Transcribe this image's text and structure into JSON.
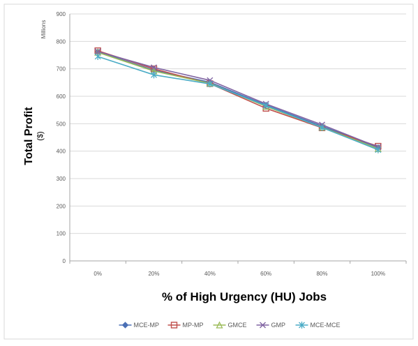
{
  "chart_data": {
    "type": "line",
    "x": [
      "0%",
      "20%",
      "40%",
      "60%",
      "80%",
      "100%"
    ],
    "series": [
      {
        "name": "MCE-MP",
        "values": [
          762,
          695,
          651,
          568,
          491,
          413
        ],
        "color": "#4a6fb5",
        "marker": "diamond"
      },
      {
        "name": "MP-MP",
        "values": [
          766,
          700,
          646,
          556,
          485,
          418
        ],
        "color": "#c0504d",
        "marker": "square"
      },
      {
        "name": "GMCE",
        "values": [
          760,
          692,
          647,
          563,
          487,
          409
        ],
        "color": "#9bbb59",
        "marker": "triangle"
      },
      {
        "name": "GMP",
        "values": [
          763,
          705,
          658,
          572,
          496,
          415
        ],
        "color": "#8064a2",
        "marker": "x"
      },
      {
        "name": "MCE-MCE",
        "values": [
          745,
          678,
          645,
          566,
          486,
          405
        ],
        "color": "#4bacc6",
        "marker": "star"
      }
    ],
    "xlabel": "% of High Urgency (HU) Jobs",
    "ylabel": "Total Profit",
    "ylabel_unit": "($)",
    "y_units_label": "Millions",
    "ylim": [
      0,
      900
    ],
    "yticks": [
      0,
      100,
      200,
      300,
      400,
      500,
      600,
      700,
      800,
      900
    ],
    "grid": "horizontal",
    "legend": "bottom"
  }
}
